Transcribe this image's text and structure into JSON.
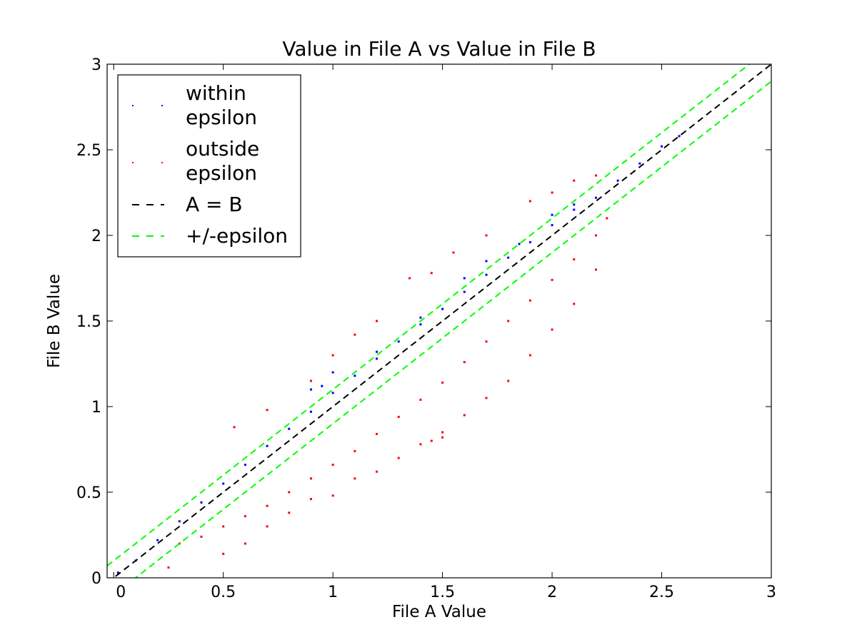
{
  "chart_data": {
    "type": "scatter",
    "title": "Value in File A vs Value in File B",
    "xlabel": "File A Value",
    "ylabel": "File B Value",
    "xlim": [
      -0.03,
      3.0
    ],
    "ylim": [
      0,
      3.0
    ],
    "xticks": [
      0,
      0.5,
      1,
      1.5,
      2,
      2.5,
      3
    ],
    "yticks": [
      0,
      0.5,
      1,
      1.5,
      2,
      2.5,
      3
    ],
    "xtick_labels": [
      "0",
      "0.5",
      "1",
      "1.5",
      "2",
      "2.5",
      "3"
    ],
    "ytick_labels": [
      "0",
      "0.5",
      "1",
      "1.5",
      "2",
      "2.5",
      "3"
    ],
    "grid": false,
    "legend_position": "top-left",
    "epsilon": 0.1,
    "series": [
      {
        "name": "within epsilon",
        "color": "#0000ff",
        "marker": "point",
        "points": [
          [
            0.02,
            0.03
          ],
          [
            0.1,
            0.1
          ],
          [
            0.2,
            0.22
          ],
          [
            0.3,
            0.33
          ],
          [
            0.4,
            0.44
          ],
          [
            0.5,
            0.55
          ],
          [
            0.6,
            0.66
          ],
          [
            0.7,
            0.77
          ],
          [
            0.8,
            0.87
          ],
          [
            0.9,
            0.97
          ],
          [
            1.0,
            1.08
          ],
          [
            1.1,
            1.18
          ],
          [
            1.2,
            1.28
          ],
          [
            1.3,
            1.38
          ],
          [
            1.4,
            1.48
          ],
          [
            1.5,
            1.57
          ],
          [
            1.6,
            1.67
          ],
          [
            1.7,
            1.77
          ],
          [
            1.8,
            1.87
          ],
          [
            1.9,
            1.96
          ],
          [
            2.0,
            2.06
          ],
          [
            2.1,
            2.15
          ],
          [
            2.2,
            2.22
          ],
          [
            2.3,
            2.32
          ],
          [
            2.4,
            2.42
          ],
          [
            2.5,
            2.52
          ],
          [
            2.58,
            2.58
          ],
          [
            0.95,
            1.12
          ],
          [
            1.0,
            1.2
          ],
          [
            0.9,
            1.1
          ],
          [
            1.2,
            1.32
          ],
          [
            1.4,
            1.52
          ],
          [
            1.6,
            1.75
          ],
          [
            1.7,
            1.85
          ],
          [
            1.85,
            1.95
          ],
          [
            2.0,
            2.12
          ],
          [
            2.1,
            2.18
          ]
        ]
      },
      {
        "name": "outside epsilon",
        "color": "#ff0000",
        "marker": "point",
        "points": [
          [
            0.25,
            0.06
          ],
          [
            0.3,
            0.2
          ],
          [
            0.4,
            0.24
          ],
          [
            0.5,
            0.3
          ],
          [
            0.6,
            0.36
          ],
          [
            0.7,
            0.42
          ],
          [
            0.8,
            0.5
          ],
          [
            0.9,
            0.58
          ],
          [
            1.0,
            0.66
          ],
          [
            1.1,
            0.74
          ],
          [
            1.2,
            0.84
          ],
          [
            1.3,
            0.94
          ],
          [
            1.4,
            1.04
          ],
          [
            1.5,
            1.14
          ],
          [
            1.6,
            1.26
          ],
          [
            1.7,
            1.38
          ],
          [
            1.8,
            1.5
          ],
          [
            1.9,
            1.62
          ],
          [
            2.0,
            1.74
          ],
          [
            2.1,
            1.86
          ],
          [
            2.2,
            2.0
          ],
          [
            2.25,
            2.1
          ],
          [
            0.5,
            0.14
          ],
          [
            0.6,
            0.2
          ],
          [
            0.7,
            0.3
          ],
          [
            0.8,
            0.38
          ],
          [
            0.9,
            0.46
          ],
          [
            1.0,
            0.48
          ],
          [
            1.1,
            0.58
          ],
          [
            1.2,
            0.62
          ],
          [
            1.3,
            0.7
          ],
          [
            1.4,
            0.78
          ],
          [
            1.5,
            0.85
          ],
          [
            1.6,
            0.95
          ],
          [
            1.7,
            1.05
          ],
          [
            1.8,
            1.15
          ],
          [
            1.9,
            1.3
          ],
          [
            2.0,
            1.45
          ],
          [
            2.1,
            1.6
          ],
          [
            2.2,
            1.8
          ],
          [
            0.55,
            0.88
          ],
          [
            0.7,
            0.98
          ],
          [
            0.9,
            1.15
          ],
          [
            1.0,
            1.3
          ],
          [
            1.1,
            1.42
          ],
          [
            1.2,
            1.5
          ],
          [
            1.35,
            1.75
          ],
          [
            1.45,
            1.78
          ],
          [
            1.55,
            1.9
          ],
          [
            1.7,
            2.0
          ],
          [
            1.9,
            2.2
          ],
          [
            2.0,
            2.25
          ],
          [
            2.1,
            2.32
          ],
          [
            2.2,
            2.35
          ],
          [
            1.45,
            0.8
          ],
          [
            1.5,
            0.82
          ]
        ]
      }
    ],
    "reference_lines": [
      {
        "name": "A = B",
        "color": "#000000",
        "style": "dashed",
        "offset": 0
      },
      {
        "name": "+/-epsilon",
        "color": "#00ff00",
        "style": "dashed",
        "offset": 0.1
      },
      {
        "name": "+/-epsilon",
        "color": "#00ff00",
        "style": "dashed",
        "offset": -0.1
      }
    ],
    "legend_entries": [
      {
        "label_line1": "within",
        "label_line2": "epsilon",
        "color": "#0000ff",
        "kind": "point"
      },
      {
        "label_line1": "outside",
        "label_line2": "epsilon",
        "color": "#ff0000",
        "kind": "point"
      },
      {
        "label_line1": "A = B",
        "label_line2": "",
        "color": "#000000",
        "kind": "dashed"
      },
      {
        "label_line1": "+/-epsilon",
        "label_line2": "",
        "color": "#00ff00",
        "kind": "dashed"
      }
    ]
  }
}
